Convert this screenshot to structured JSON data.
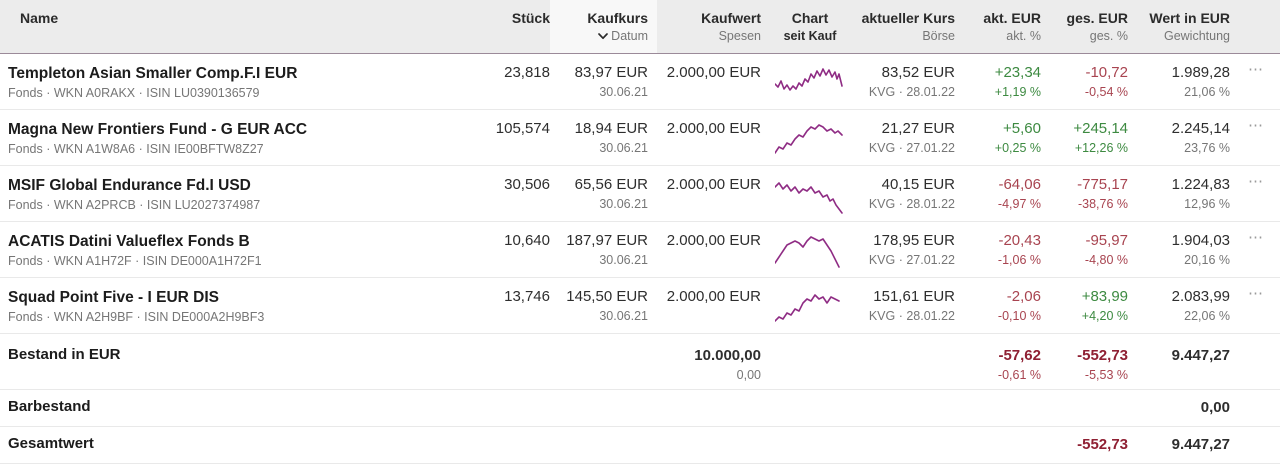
{
  "colors": {
    "spark": "#8f2c84",
    "positive": "#3d8a41",
    "negative": "#a84450",
    "total_negative": "#8f2033",
    "header_bg": "#ececec",
    "sorted_col_bg": "#f8f8f8",
    "header_border": "#9b8a99"
  },
  "header": {
    "name": {
      "label": "Name"
    },
    "stueck": {
      "label": "Stück"
    },
    "kaufkurs": {
      "label": "Kaufkurs",
      "sub": "Datum",
      "sort_icon": "chevron-down-icon"
    },
    "kaufwert": {
      "label": "Kaufwert",
      "sub": "Spesen"
    },
    "chart": {
      "label": "Chart",
      "sub": "seit Kauf"
    },
    "kurs": {
      "label": "aktueller Kurs",
      "sub": "Börse"
    },
    "akt": {
      "label": "akt. EUR",
      "sub": "akt. %"
    },
    "ges": {
      "label": "ges. EUR",
      "sub": "ges. %"
    },
    "wert": {
      "label": "Wert in EUR",
      "sub": "Gewichtung"
    }
  },
  "menu_icon": "⋯",
  "rows": [
    {
      "name": "Templeton Asian Smaller Comp.F.I EUR",
      "details": "Fonds · WKN A0RAKX · ISIN LU0390136579",
      "stueck": "23,818",
      "kaufkurs": "83,97 EUR",
      "kaufkurs_datum": "30.06.21",
      "kaufwert": "2.000,00 EUR",
      "kurs": "83,52 EUR",
      "kurs_info": "KVG · 28.01.22",
      "akt_eur": "+23,34",
      "akt_pct": "+1,19 %",
      "akt_dir": "up",
      "ges_eur": "-10,72",
      "ges_pct": "-0,54 %",
      "ges_dir": "down",
      "wert": "1.989,28",
      "gewichtung": "21,06 %",
      "spark": [
        [
          0,
          22
        ],
        [
          3,
          25
        ],
        [
          6,
          19
        ],
        [
          9,
          27
        ],
        [
          12,
          23
        ],
        [
          15,
          28
        ],
        [
          18,
          24
        ],
        [
          21,
          27
        ],
        [
          24,
          21
        ],
        [
          27,
          24
        ],
        [
          30,
          17
        ],
        [
          33,
          20
        ],
        [
          36,
          12
        ],
        [
          39,
          16
        ],
        [
          42,
          9
        ],
        [
          45,
          14
        ],
        [
          48,
          7
        ],
        [
          51,
          13
        ],
        [
          54,
          8
        ],
        [
          57,
          15
        ],
        [
          60,
          10
        ],
        [
          62,
          17
        ],
        [
          64,
          12
        ],
        [
          67,
          24
        ]
      ]
    },
    {
      "name": "Magna New Frontiers Fund - G EUR ACC",
      "details": "Fonds · WKN A1W8A6 · ISIN IE00BFTW8Z27",
      "stueck": "105,574",
      "kaufkurs": "18,94 EUR",
      "kaufkurs_datum": "30.06.21",
      "kaufwert": "2.000,00 EUR",
      "kurs": "21,27 EUR",
      "kurs_info": "KVG · 27.01.22",
      "akt_eur": "+5,60",
      "akt_pct": "+0,25 %",
      "akt_dir": "up",
      "ges_eur": "+245,14",
      "ges_pct": "+12,26 %",
      "ges_dir": "up",
      "wert": "2.245,14",
      "gewichtung": "23,76 %",
      "spark": [
        [
          0,
          35
        ],
        [
          4,
          29
        ],
        [
          8,
          31
        ],
        [
          12,
          25
        ],
        [
          16,
          27
        ],
        [
          20,
          21
        ],
        [
          24,
          17
        ],
        [
          28,
          19
        ],
        [
          32,
          13
        ],
        [
          36,
          9
        ],
        [
          40,
          11
        ],
        [
          44,
          7
        ],
        [
          48,
          9
        ],
        [
          52,
          13
        ],
        [
          56,
          11
        ],
        [
          60,
          15
        ],
        [
          63,
          13
        ],
        [
          67,
          17
        ]
      ]
    },
    {
      "name": "MSIF Global Endurance Fd.I USD",
      "details": "Fonds · WKN A2PRCB · ISIN LU2027374987",
      "stueck": "30,506",
      "kaufkurs": "65,56 EUR",
      "kaufkurs_datum": "30.06.21",
      "kaufwert": "2.000,00 EUR",
      "kurs": "40,15 EUR",
      "kurs_info": "KVG · 28.01.22",
      "akt_eur": "-64,06",
      "akt_pct": "-4,97 %",
      "akt_dir": "down",
      "ges_eur": "-775,17",
      "ges_pct": "-38,76 %",
      "ges_dir": "down",
      "wert": "1.224,83",
      "gewichtung": "12,96 %",
      "spark": [
        [
          0,
          13
        ],
        [
          4,
          9
        ],
        [
          8,
          15
        ],
        [
          12,
          11
        ],
        [
          16,
          17
        ],
        [
          20,
          13
        ],
        [
          24,
          19
        ],
        [
          28,
          15
        ],
        [
          32,
          17
        ],
        [
          36,
          13
        ],
        [
          40,
          19
        ],
        [
          44,
          17
        ],
        [
          48,
          23
        ],
        [
          52,
          21
        ],
        [
          55,
          27
        ],
        [
          58,
          25
        ],
        [
          61,
          31
        ],
        [
          64,
          35
        ],
        [
          67,
          39
        ]
      ]
    },
    {
      "name": "ACATIS Datini Valueflex Fonds B",
      "details": "Fonds · WKN A1H72F · ISIN DE000A1H72F1",
      "stueck": "10,640",
      "kaufkurs": "187,97 EUR",
      "kaufkurs_datum": "30.06.21",
      "kaufwert": "2.000,00 EUR",
      "kurs": "178,95 EUR",
      "kurs_info": "KVG · 27.01.22",
      "akt_eur": "-20,43",
      "akt_pct": "-1,06 %",
      "akt_dir": "down",
      "ges_eur": "-95,97",
      "ges_pct": "-4,80 %",
      "ges_dir": "down",
      "wert": "1.904,03",
      "gewichtung": "20,16 %",
      "spark": [
        [
          0,
          33
        ],
        [
          4,
          27
        ],
        [
          8,
          21
        ],
        [
          12,
          15
        ],
        [
          16,
          13
        ],
        [
          20,
          11
        ],
        [
          24,
          13
        ],
        [
          28,
          17
        ],
        [
          32,
          11
        ],
        [
          36,
          7
        ],
        [
          40,
          9
        ],
        [
          44,
          11
        ],
        [
          48,
          9
        ],
        [
          52,
          15
        ],
        [
          56,
          21
        ],
        [
          60,
          29
        ],
        [
          64,
          37
        ]
      ]
    },
    {
      "name": "Squad Point Five - I EUR DIS",
      "details": "Fonds · WKN A2H9BF · ISIN DE000A2H9BF3",
      "stueck": "13,746",
      "kaufkurs": "145,50 EUR",
      "kaufkurs_datum": "30.06.21",
      "kaufwert": "2.000,00 EUR",
      "kurs": "151,61 EUR",
      "kurs_info": "KVG · 28.01.22",
      "akt_eur": "-2,06",
      "akt_pct": "-0,10 %",
      "akt_dir": "down",
      "ges_eur": "+83,99",
      "ges_pct": "+4,20 %",
      "ges_dir": "up",
      "wert": "2.083,99",
      "gewichtung": "22,06 %",
      "spark": [
        [
          0,
          35
        ],
        [
          4,
          31
        ],
        [
          8,
          33
        ],
        [
          12,
          27
        ],
        [
          16,
          29
        ],
        [
          20,
          23
        ],
        [
          24,
          25
        ],
        [
          28,
          17
        ],
        [
          32,
          13
        ],
        [
          36,
          15
        ],
        [
          40,
          9
        ],
        [
          44,
          13
        ],
        [
          48,
          11
        ],
        [
          52,
          17
        ],
        [
          56,
          11
        ],
        [
          60,
          13
        ],
        [
          64,
          15
        ]
      ]
    }
  ],
  "totals": {
    "bestand": {
      "label": "Bestand in EUR",
      "kaufwert": "10.000,00",
      "spesen": "0,00",
      "akt_eur": "-57,62",
      "akt_pct": "-0,61 %",
      "ges_eur": "-552,73",
      "ges_pct": "-5,53 %",
      "wert": "9.447,27"
    },
    "barbestand": {
      "label": "Barbestand",
      "wert": "0,00"
    },
    "gesamtwert": {
      "label": "Gesamtwert",
      "ges_eur": "-552,73",
      "wert": "9.447,27"
    }
  }
}
